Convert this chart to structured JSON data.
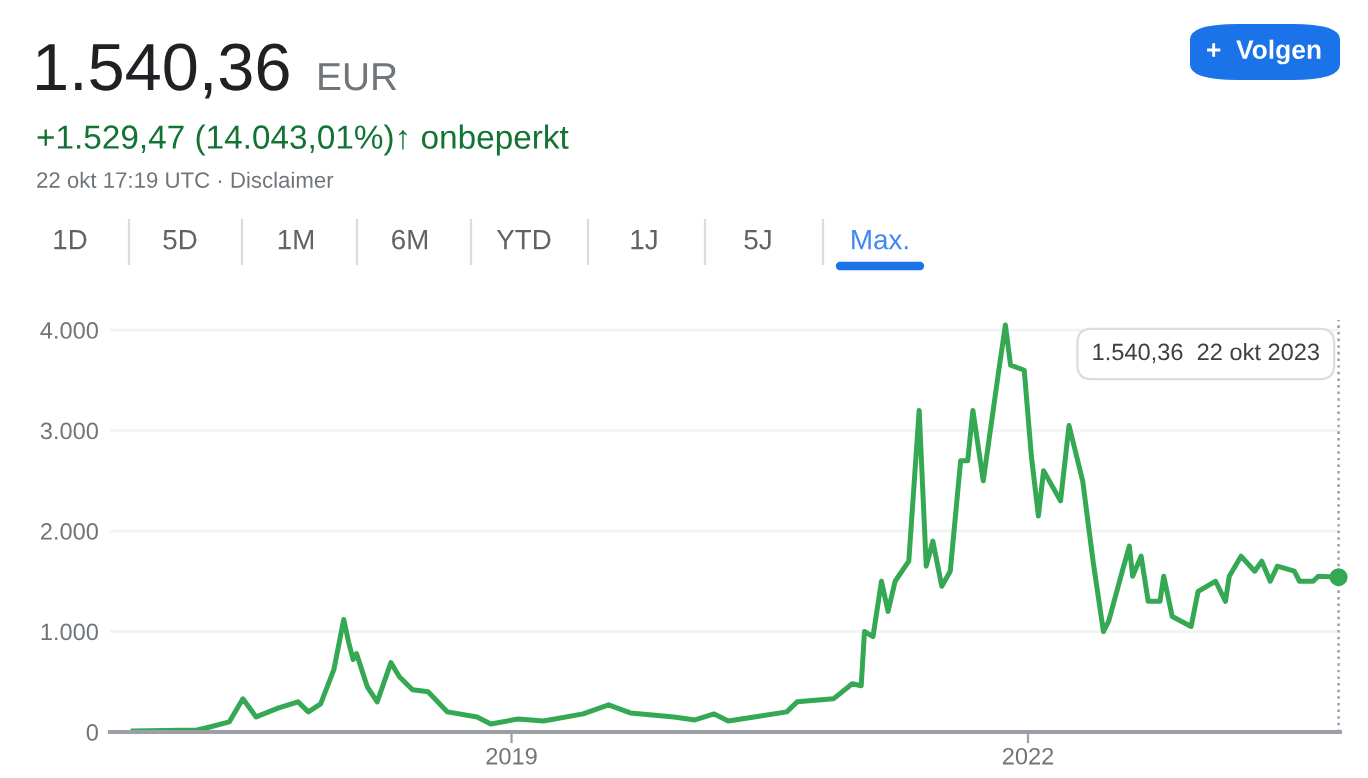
{
  "chart_data": {
    "type": "line",
    "title": "1.540,36",
    "subtitle": "EUR",
    "annotations": [
      "+1.529,47 (14.043,01%)↑ onbeperkt",
      "22 okt 17:19 UTC · Disclaimer",
      "+  Volgen",
      "1D",
      "5D",
      "1M",
      "6M",
      "YTD",
      "1J",
      "5J",
      "Max.",
      "1.540,36  22 okt 2023"
    ],
    "series": [
      {
        "color": "#34a853",
        "x": [
          "2016-10-20",
          "2017-03-05",
          "2017-04-01",
          "2017-05-12",
          "2017-06-10",
          "2017-07-08",
          "2017-08-25",
          "2017-10-05",
          "2017-10-27",
          "2017-11-22",
          "2017-12-20",
          "2018-01-10",
          "2018-01-20",
          "2018-01-30",
          "2018-02-06",
          "2018-03-01",
          "2018-03-22",
          "2018-04-20",
          "2018-05-08",
          "2018-06-05",
          "2018-07-08",
          "2018-08-18",
          "2018-10-20",
          "2018-11-18",
          "2019-01-15",
          "2019-03-10",
          "2019-06-02",
          "2019-07-26",
          "2019-09-10",
          "2019-12-12",
          "2020-01-25",
          "2020-03-06",
          "2020-04-05",
          "2020-05-30",
          "2020-08-07",
          "2020-08-29",
          "2020-11-14",
          "2020-12-24",
          "2021-01-12",
          "2021-01-19",
          "2021-02-06",
          "2021-02-24",
          "2021-03-10",
          "2021-03-25",
          "2021-04-23",
          "2021-05-15",
          "2021-05-30",
          "2021-06-13",
          "2021-07-02",
          "2021-07-20",
          "2021-08-11",
          "2021-08-26",
          "2021-09-06",
          "2021-09-28",
          "2021-10-31",
          "2021-11-14",
          "2021-11-25",
          "2021-12-24",
          "2022-01-08",
          "2022-01-23",
          "2022-02-03",
          "2022-03-11",
          "2022-03-29",
          "2022-04-27",
          "2022-05-19",
          "2022-06-10",
          "2022-06-21",
          "2022-07-20",
          "2022-08-04",
          "2022-08-11",
          "2022-08-29",
          "2022-09-13",
          "2022-10-08",
          "2022-10-16",
          "2022-11-03",
          "2022-12-13",
          "2022-12-28",
          "2023-02-03",
          "2023-02-24",
          "2023-03-04",
          "2023-03-29",
          "2023-04-27",
          "2023-05-12",
          "2023-05-30",
          "2023-06-14",
          "2023-07-20",
          "2023-07-31",
          "2023-08-29",
          "2023-09-09",
          "2023-10-22"
        ],
        "values": [
          10,
          20,
          50,
          100,
          330,
          150,
          240,
          300,
          200,
          280,
          620,
          1120,
          900,
          720,
          780,
          450,
          300,
          690,
          550,
          420,
          400,
          200,
          150,
          80,
          130,
          110,
          180,
          270,
          190,
          150,
          120,
          180,
          110,
          150,
          200,
          300,
          330,
          480,
          460,
          1000,
          950,
          1500,
          1200,
          1500,
          1700,
          3200,
          1650,
          1900,
          1450,
          1600,
          2700,
          2700,
          3200,
          2500,
          3600,
          4050,
          3650,
          3600,
          2750,
          2150,
          2600,
          2300,
          3050,
          2500,
          1700,
          1000,
          1100,
          1600,
          1850,
          1550,
          1750,
          1300,
          1300,
          1550,
          1150,
          1050,
          1400,
          1500,
          1300,
          1550,
          1750,
          1600,
          1700,
          1500,
          1650,
          1600,
          1500,
          1500,
          1550,
          1540.36
        ]
      },
      {
        "type": "scatter",
        "color": "#34a853",
        "marker": "circle",
        "x": [
          "2023-10-22"
        ],
        "values": [
          1540.36
        ]
      }
    ],
    "xlim": [
      "2016-09-01",
      "2023-10-25"
    ],
    "xticks": [
      {
        "value": "2019-01-01",
        "label": "2019"
      },
      {
        "value": "2022-01-01",
        "label": "2022"
      }
    ],
    "ylim": [
      0,
      4100
    ],
    "yticks": [
      0,
      {
        "value": 1000,
        "label": "1.000"
      },
      {
        "value": 2000,
        "label": "2.000"
      },
      {
        "value": 3000,
        "label": "3.000"
      },
      {
        "value": 4000,
        "label": "4.000"
      }
    ],
    "grid": "y",
    "legend": false,
    "marker": "none",
    "line_style": "solid",
    "ref_lines": [
      {
        "axis": "x",
        "value": "2023-10-22",
        "label": null,
        "color": "#9aa0a6",
        "line_style": "dotted"
      }
    ]
  }
}
